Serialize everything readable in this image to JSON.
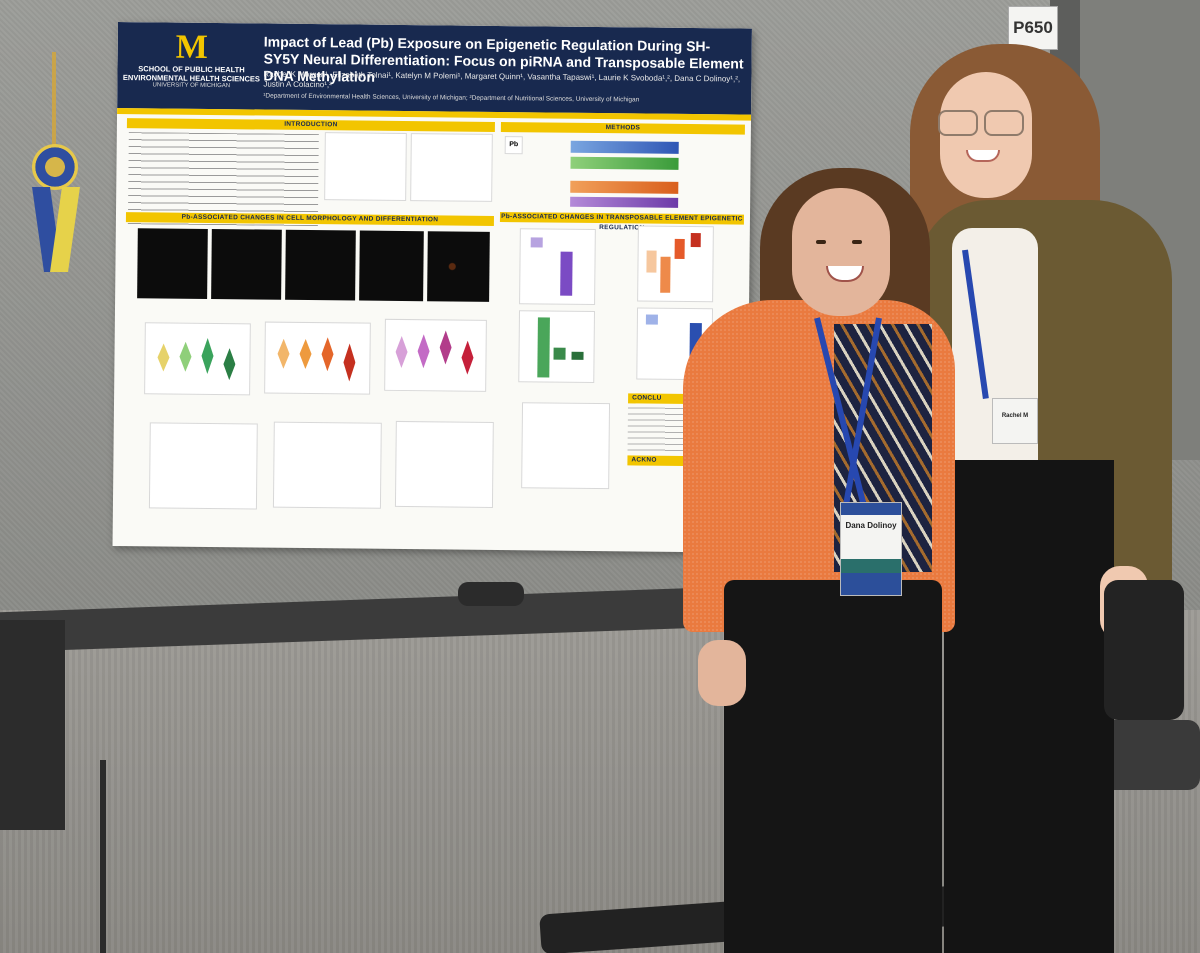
{
  "booth": {
    "number": "P650"
  },
  "poster": {
    "logo": "M",
    "school_line1": "SCHOOL OF PUBLIC HEALTH",
    "school_line2": "ENVIRONMENTAL HEALTH SCIENCES",
    "university": "UNIVERSITY OF MICHIGAN",
    "title": "Impact of Lead (Pb) Exposure on Epigenetic Regulation During SH-SY5Y Neural Differentiation: Focus on piRNA and Transposable Element DNA Methylation",
    "authors": "Rachel K Morgan¹, Elizabeth Tolnai¹, Katelyn M Polemi¹, Margaret Quinn¹, Vasantha Tapaswi¹, Laurie K Svoboda¹,², Dana C Dolinoy¹,², Justin A Colacino¹,²",
    "affiliations": "¹Department of Environmental Health Sciences, University of Michigan; ²Department of Nutritional Sciences, University of Michigan",
    "sections": {
      "introduction": "INTRODUCTION",
      "methods": "METHODS",
      "morphology": "Pb-ASSOCIATED CHANGES IN CELL MORPHOLOGY AND DIFFERENTIATION",
      "transposable": "Pb-ASSOCIATED CHANGES IN TRANSPOSABLE ELEMENT EPIGENETIC REGULATION",
      "conclusions": "CONCLU",
      "acknowledgements": "ACKNO"
    },
    "pb_label": "Pb"
  },
  "badges": {
    "dana": {
      "name": "Dana Dolinoy"
    },
    "rachel": {
      "name": "Rachel M"
    }
  }
}
